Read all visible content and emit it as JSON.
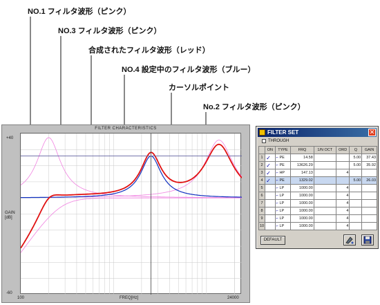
{
  "callouts": [
    {
      "id": "no1",
      "text": "NO.1 フィルタ波形（ピンク）"
    },
    {
      "id": "no3",
      "text": "NO.3 フィルタ波形（ピンク）"
    },
    {
      "id": "combined",
      "text": "合成されたフィルタ波形（レッド）"
    },
    {
      "id": "no4",
      "text": "NO.4 設定中のフィルタ波形（ブルー）"
    },
    {
      "id": "cursor",
      "text": "カーソルポイント"
    },
    {
      "id": "no2",
      "text": "No.2 フィルタ波形（ピンク）"
    }
  ],
  "graph": {
    "title": "FILTER CHARACTERISTICS",
    "y_top_label": "+40",
    "y_mid_label": "GAIN\n[dB]",
    "y_bottom_label": "-60",
    "x_left_label": "100",
    "x_center_label": "FREQ[Hz]",
    "x_right_label": "24000",
    "colors": {
      "combined": "#e01010",
      "current": "#1030c0",
      "other": "#f080e0",
      "grid": "#c8c8c8",
      "cursor": "#404040"
    }
  },
  "dialog": {
    "title": "FILTER SET",
    "close": "✕",
    "through_label": "THROUGH",
    "columns": [
      "",
      "ON",
      "TYPE",
      "FRQ",
      "1/N OCT",
      "ORD",
      "Q",
      "GAIN"
    ],
    "rows": [
      {
        "idx": "1",
        "on": "✓",
        "type": "PE",
        "frq": "14.58",
        "oct": "",
        "ord": "",
        "q": "5.00",
        "gain": "37.43"
      },
      {
        "idx": "2",
        "on": "✓",
        "type": "PE",
        "frq": "13626.29",
        "oct": "",
        "ord": "",
        "q": "5.00",
        "gain": "35.92"
      },
      {
        "idx": "3",
        "on": "✓",
        "type": "HP",
        "frq": "147.13",
        "oct": "",
        "ord": "4",
        "q": "",
        "gain": ""
      },
      {
        "idx": "4",
        "on": "✓",
        "type": "PE",
        "frq": "1329.02",
        "oct": "",
        "ord": "",
        "q": "5.00",
        "gain": "26.03"
      },
      {
        "idx": "5",
        "on": "",
        "type": "LP",
        "frq": "1000.00",
        "oct": "",
        "ord": "4",
        "q": "",
        "gain": ""
      },
      {
        "idx": "6",
        "on": "",
        "type": "LP",
        "frq": "1000.00",
        "oct": "",
        "ord": "4",
        "q": "",
        "gain": ""
      },
      {
        "idx": "7",
        "on": "",
        "type": "LP",
        "frq": "1000.00",
        "oct": "",
        "ord": "4",
        "q": "",
        "gain": ""
      },
      {
        "idx": "8",
        "on": "",
        "type": "LP",
        "frq": "1000.00",
        "oct": "",
        "ord": "4",
        "q": "",
        "gain": ""
      },
      {
        "idx": "9",
        "on": "",
        "type": "LP",
        "frq": "1000.00",
        "oct": "",
        "ord": "4",
        "q": "",
        "gain": ""
      },
      {
        "idx": "10",
        "on": "",
        "type": "LP",
        "frq": "1000.00",
        "oct": "",
        "ord": "4",
        "q": "",
        "gain": ""
      }
    ],
    "default_button": "DEFAULT",
    "tool_icons": [
      "paint-icon",
      "save-icon"
    ]
  }
}
